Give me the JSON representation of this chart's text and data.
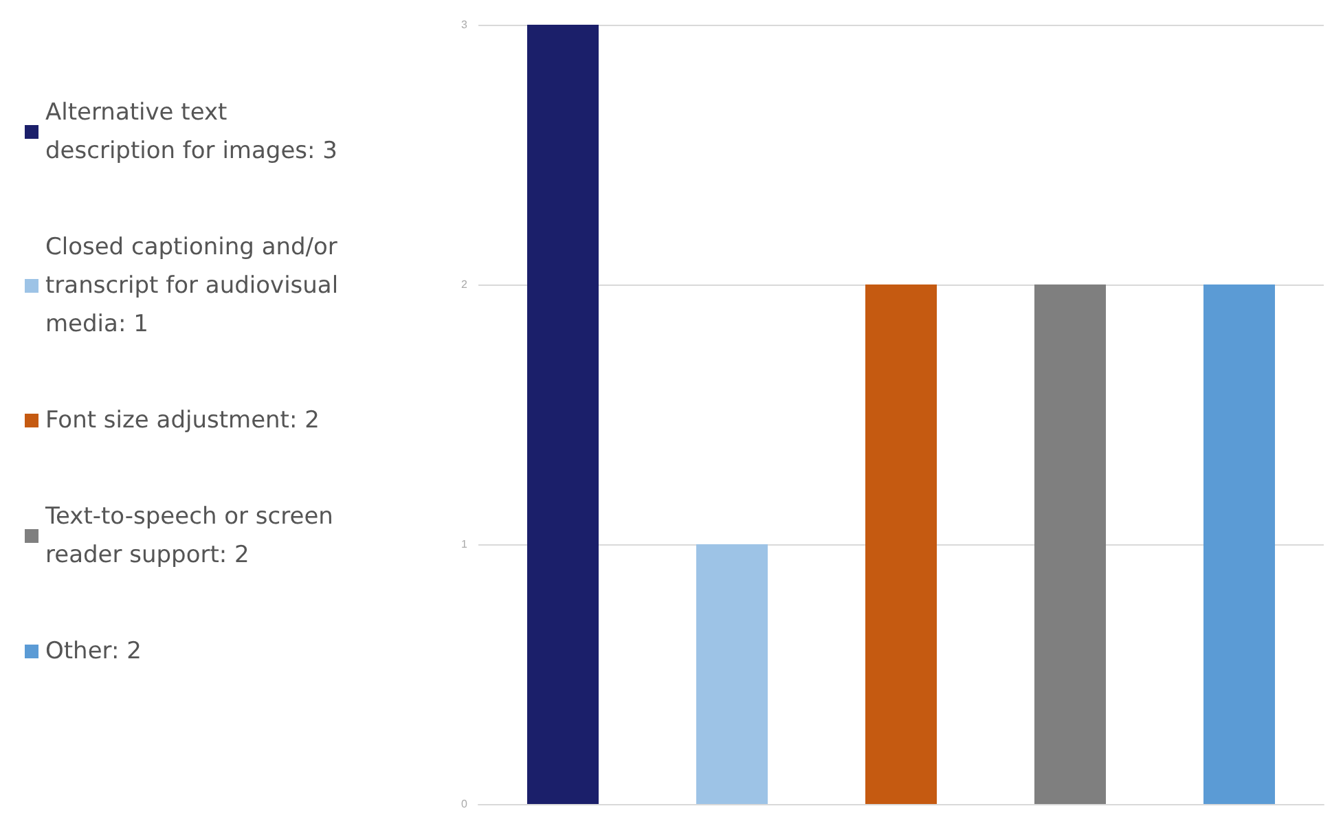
{
  "chart_data": {
    "type": "bar",
    "categories": [
      null,
      null,
      null,
      null,
      null
    ],
    "series": [
      {
        "name": "Alternative text description for images: 3",
        "color": "#1b1f6a",
        "values": [
          3,
          null,
          null,
          null,
          null
        ]
      },
      {
        "name": "Closed captioning and/or transcript for audiovisual media: 1",
        "color": "#9dc3e6",
        "values": [
          null,
          1,
          null,
          null,
          null
        ]
      },
      {
        "name": "Font size adjustment: 2",
        "color": "#c55a11",
        "values": [
          null,
          null,
          2,
          null,
          null
        ]
      },
      {
        "name": "Text-to-speech or screen reader support: 2",
        "color": "#7f7f7f",
        "values": [
          null,
          null,
          null,
          2,
          null
        ]
      },
      {
        "name": "Other: 2",
        "color": "#5b9bd5",
        "values": [
          null,
          null,
          null,
          null,
          2
        ]
      }
    ],
    "ylim": [
      0,
      3
    ],
    "yticks": [
      0,
      1,
      2,
      3
    ],
    "grid": "y",
    "legend": "left"
  }
}
